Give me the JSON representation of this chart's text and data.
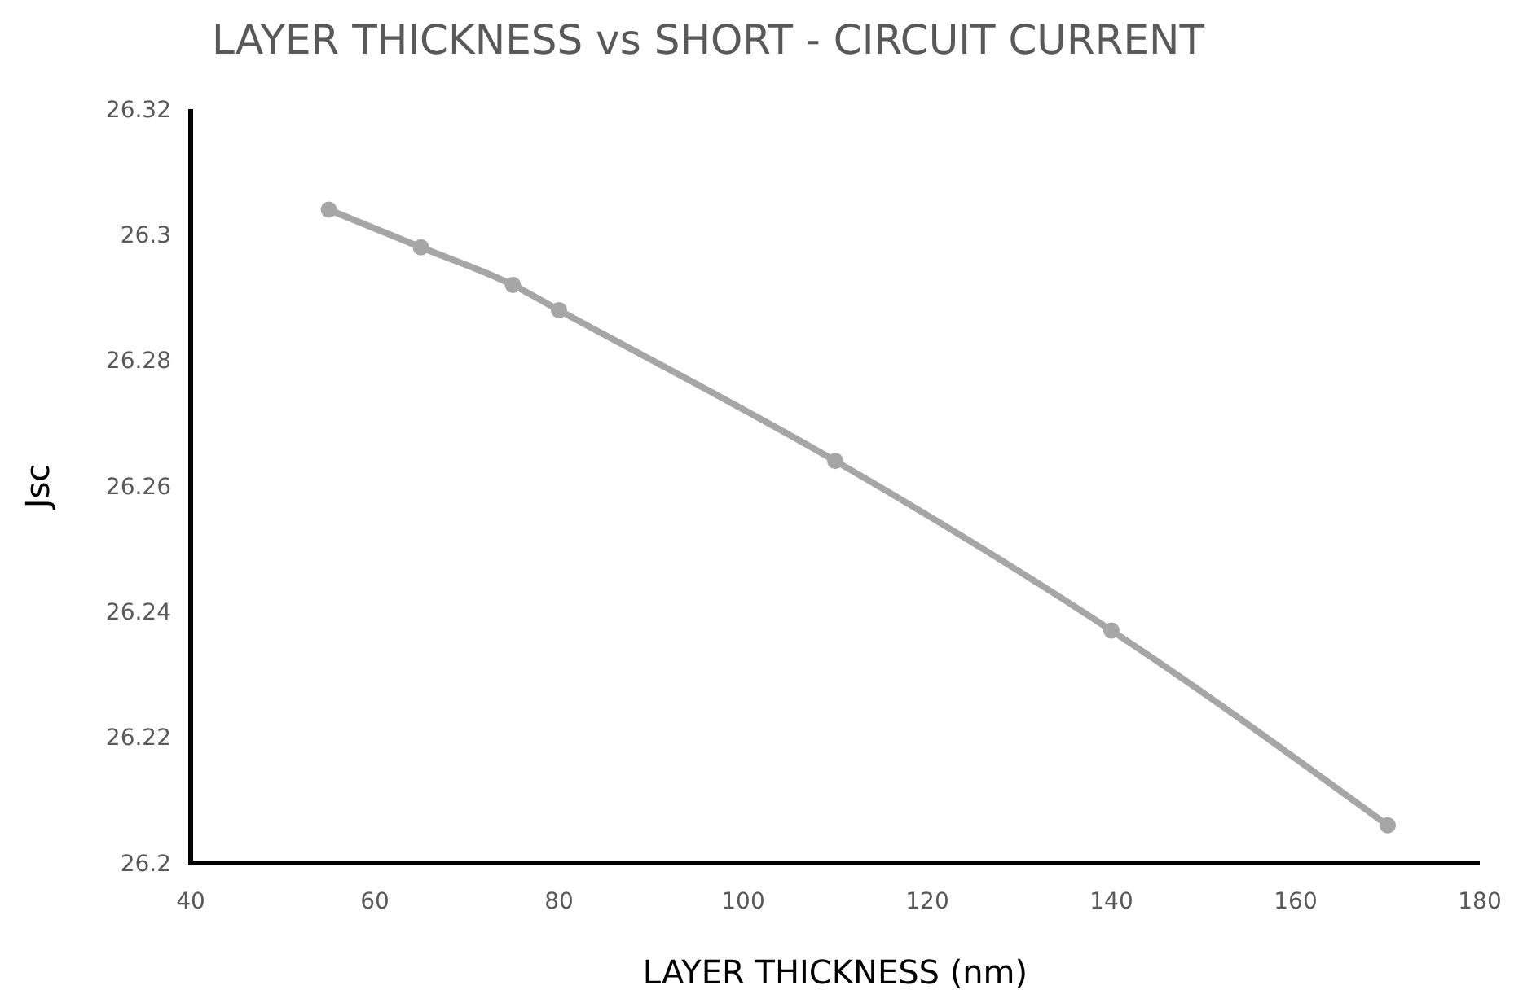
{
  "chart_data": {
    "type": "line",
    "title": "LAYER THICKNESS vs SHORT - CIRCUIT CURRENT",
    "xlabel": "LAYER THICKNESS (nm)",
    "ylabel": "Jsc",
    "x": [
      55,
      65,
      75,
      80,
      110,
      140,
      170
    ],
    "series": [
      {
        "color": "#a6a6a6",
        "values": [
          26.304,
          26.298,
          26.292,
          26.288,
          26.264,
          26.237,
          26.206
        ]
      }
    ],
    "xlim": [
      40,
      180
    ],
    "xticks": [
      40,
      60,
      80,
      100,
      120,
      140,
      160,
      180
    ],
    "ylim": [
      26.2,
      26.32
    ],
    "yticks": [
      26.2,
      26.22,
      26.24,
      26.26,
      26.28,
      26.3,
      26.32
    ],
    "grid": false,
    "marker": "circle",
    "line_style": "solid"
  }
}
